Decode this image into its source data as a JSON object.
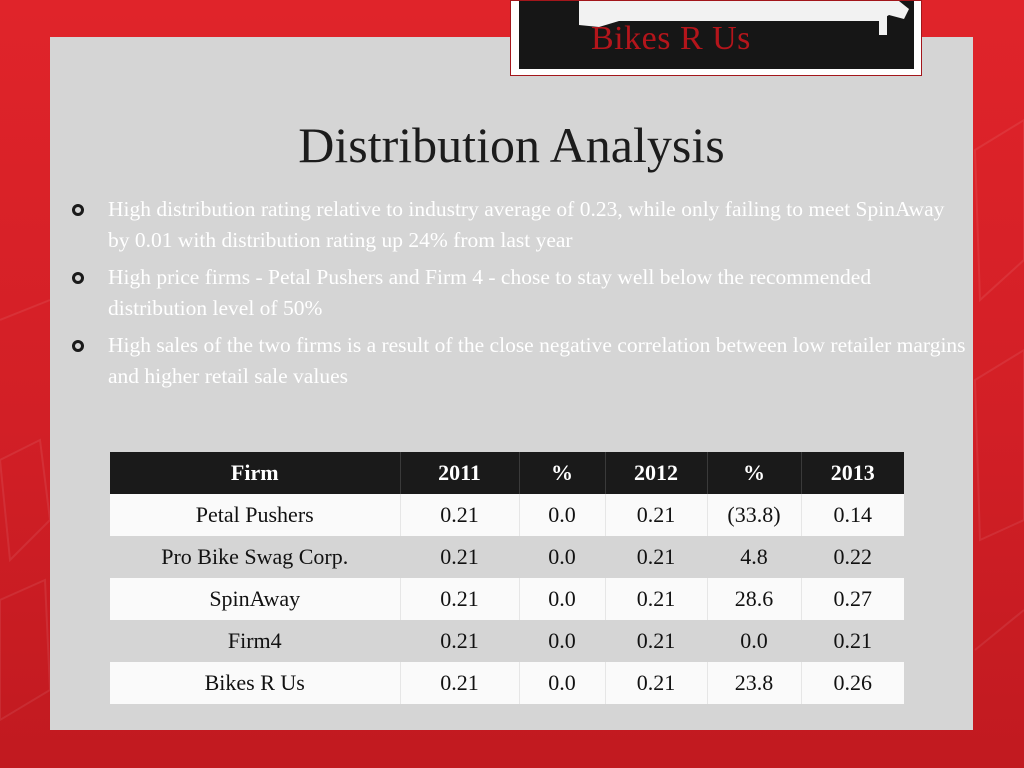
{
  "logo": {
    "text": "Bikes R Us"
  },
  "title": "Distribution Analysis",
  "bullets": [
    "High distribution rating relative to industry average of 0.23, while only failing to meet SpinAway by 0.01 with distribution rating up 24% from last year",
    "High price firms - Petal Pushers and Firm 4 - chose to stay well below the recommended distribution level of 50%",
    "High sales of the two firms is a result of the close negative correlation between low retailer margins and higher retail sale values"
  ],
  "table": {
    "headers": [
      "Firm",
      "2011",
      "%",
      "2012",
      "%",
      "2013"
    ],
    "rows": [
      [
        "Petal Pushers",
        "0.21",
        "0.0",
        "0.21",
        "(33.8)",
        "0.14"
      ],
      [
        "Pro Bike Swag Corp.",
        "0.21",
        "0.0",
        "0.21",
        "4.8",
        "0.22"
      ],
      [
        "SpinAway",
        "0.21",
        "0.0",
        "0.21",
        "28.6",
        "0.27"
      ],
      [
        "Firm4",
        "0.21",
        "0.0",
        "0.21",
        "0.0",
        "0.21"
      ],
      [
        "Bikes R Us",
        "0.21",
        "0.0",
        "0.21",
        "23.8",
        "0.26"
      ]
    ]
  },
  "colors": {
    "background_red": "#d21f26",
    "panel_gray": "#d5d5d5",
    "header_black": "#1a1a1a",
    "logo_text_red": "#b4151b"
  }
}
